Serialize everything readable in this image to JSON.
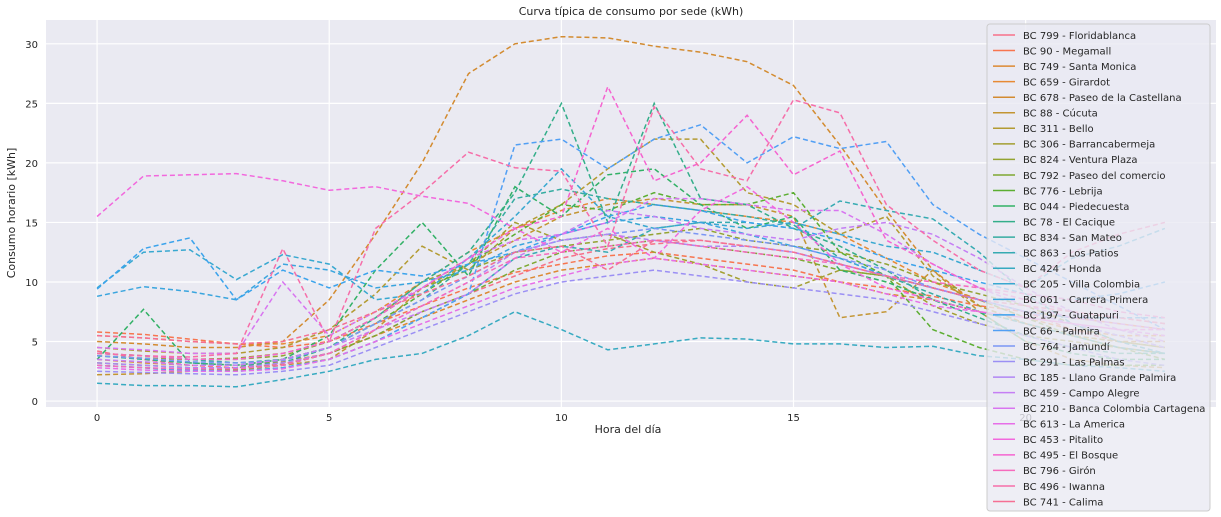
{
  "chart_data": {
    "type": "line",
    "title": "Curva típica de consumo por sede (kWh)",
    "xlabel": "Hora del día",
    "ylabel": "Consumo horario [kWh]",
    "xlim": [
      -1.1,
      24.1
    ],
    "ylim": [
      -0.5,
      32.0
    ],
    "xticks": [
      0,
      5,
      10,
      15,
      20
    ],
    "yticks": [
      0,
      5,
      10,
      15,
      20,
      25,
      30
    ],
    "grid": true,
    "legend_position": "top-right",
    "line_style": "dashed",
    "x": [
      0,
      1,
      2,
      3,
      4,
      5,
      6,
      7,
      8,
      9,
      10,
      11,
      12,
      13,
      14,
      15,
      16,
      17,
      18,
      19,
      20,
      21,
      22,
      23
    ],
    "series": [
      {
        "name": "BC 799 - Floridablanca",
        "color": "#f77189",
        "values": [
          4.2,
          3.5,
          3.0,
          2.8,
          3.1,
          4.0,
          5.5,
          7.5,
          9.0,
          10.5,
          12.0,
          12.8,
          13.2,
          13.5,
          13.0,
          12.5,
          11.5,
          10.5,
          9.5,
          8.5,
          7.5,
          6.0,
          5.0,
          4.5
        ]
      },
      {
        "name": "BC 90 - Megamall",
        "color": "#f7754f",
        "values": [
          5.8,
          5.6,
          5.2,
          4.8,
          4.5,
          5.0,
          6.5,
          8.0,
          9.5,
          10.8,
          11.5,
          12.2,
          12.5,
          12.0,
          11.5,
          11.0,
          10.0,
          9.5,
          8.8,
          8.0,
          7.5,
          7.0,
          6.5,
          6.0
        ]
      },
      {
        "name": "BC 749 - Santa Monica",
        "color": "#dc8932",
        "values": [
          3.5,
          3.2,
          3.0,
          3.0,
          3.3,
          4.0,
          5.5,
          7.0,
          8.5,
          10.0,
          11.0,
          11.5,
          12.0,
          11.5,
          11.0,
          10.5,
          10.0,
          9.0,
          8.5,
          7.5,
          6.5,
          5.5,
          4.5,
          4.0
        ]
      },
      {
        "name": "BC 659 - Girardot",
        "color": "#e78a34",
        "values": [
          5.5,
          5.3,
          5.0,
          4.8,
          4.8,
          5.5,
          7.5,
          10.0,
          12.5,
          14.5,
          16.0,
          17.0,
          16.5,
          16.0,
          15.5,
          15.0,
          14.0,
          12.0,
          10.0,
          8.5,
          7.0,
          6.0,
          5.5,
          5.5
        ]
      },
      {
        "name": "BC 678 - Paseo de la Castellana",
        "color": "#d38b30",
        "values": [
          5.0,
          4.8,
          4.5,
          4.5,
          5.0,
          8.5,
          14.0,
          20.0,
          27.5,
          30.0,
          30.6,
          30.5,
          29.8,
          29.3,
          28.5,
          26.5,
          21.5,
          16.0,
          11.0,
          8.0,
          6.5,
          5.5,
          5.0,
          5.0
        ]
      },
      {
        "name": "BC 88 - Cúcuta",
        "color": "#c39532",
        "values": [
          2.2,
          2.3,
          2.5,
          2.8,
          3.0,
          3.5,
          6.0,
          9.5,
          11.5,
          13.5,
          15.5,
          16.5,
          17.0,
          16.5,
          16.5,
          15.5,
          7.0,
          7.5,
          11.0,
          7.5,
          5.0,
          3.5,
          3.0,
          2.8
        ]
      },
      {
        "name": "BC 311 - Bello",
        "color": "#b39b32",
        "values": [
          4.5,
          4.2,
          4.0,
          4.0,
          4.5,
          6.0,
          9.0,
          13.0,
          11.0,
          14.5,
          16.5,
          19.5,
          22.0,
          22.0,
          17.5,
          16.5,
          14.0,
          15.5,
          10.5,
          8.0,
          6.5,
          5.5,
          5.0,
          4.5
        ]
      },
      {
        "name": "BC 306 - Barrancabermeja",
        "color": "#a39f31",
        "values": [
          3.8,
          3.6,
          3.5,
          3.6,
          4.0,
          5.0,
          7.0,
          10.0,
          11.5,
          15.0,
          13.5,
          14.0,
          12.5,
          11.5,
          10.0,
          9.5,
          11.0,
          10.5,
          8.0,
          6.5,
          5.5,
          5.0,
          4.5,
          4.0
        ]
      },
      {
        "name": "BC 824 - Ventura Plaza",
        "color": "#93a331",
        "values": [
          4.0,
          3.8,
          3.5,
          3.5,
          3.8,
          5.0,
          7.0,
          9.5,
          11.0,
          12.5,
          13.0,
          13.5,
          14.0,
          14.5,
          13.5,
          13.0,
          12.5,
          11.5,
          10.0,
          9.0,
          8.0,
          6.5,
          5.0,
          4.5
        ]
      },
      {
        "name": "BC 792 - Paseo del comercio",
        "color": "#7ea832",
        "values": [
          3.0,
          2.8,
          2.6,
          2.6,
          3.0,
          4.0,
          5.5,
          7.5,
          9.0,
          11.0,
          12.5,
          13.0,
          13.5,
          13.0,
          12.5,
          12.0,
          11.0,
          10.5,
          9.5,
          8.5,
          7.0,
          5.5,
          4.5,
          3.5
        ]
      },
      {
        "name": "BC 776 - Lebrija",
        "color": "#5cae32",
        "values": [
          3.2,
          3.0,
          2.8,
          2.8,
          3.5,
          4.5,
          6.5,
          9.0,
          11.5,
          14.0,
          16.5,
          16.0,
          17.5,
          16.5,
          16.5,
          17.5,
          12.5,
          10.5,
          6.0,
          4.5,
          3.5,
          3.0,
          3.0,
          3.0
        ]
      },
      {
        "name": "BC 044 - Piedecuesta",
        "color": "#32b166",
        "values": [
          3.5,
          7.7,
          3.2,
          3.0,
          3.5,
          5.5,
          11.0,
          15.0,
          10.5,
          18.0,
          15.5,
          19.0,
          19.5,
          16.5,
          14.5,
          15.5,
          11.0,
          10.0,
          8.5,
          7.5,
          5.0,
          4.0,
          3.5,
          3.5
        ]
      },
      {
        "name": "BC 78 - El Cacique",
        "color": "#34ae8a",
        "values": [
          3.8,
          3.5,
          3.2,
          3.0,
          3.2,
          4.5,
          7.0,
          10.0,
          12.5,
          17.5,
          25.0,
          15.0,
          25.0,
          17.0,
          16.5,
          14.5,
          13.0,
          11.0,
          8.5,
          7.0,
          5.5,
          4.5,
          4.0,
          4.0
        ]
      },
      {
        "name": "BC 834 - San Mateo",
        "color": "#35aca1",
        "values": [
          4.0,
          3.8,
          3.5,
          3.2,
          3.5,
          4.5,
          6.5,
          8.5,
          11.5,
          17.0,
          17.8,
          17.0,
          16.5,
          16.0,
          15.5,
          14.8,
          12.0,
          10.5,
          9.0,
          7.5,
          6.5,
          5.5,
          4.5,
          4.0
        ]
      },
      {
        "name": "BC 863 - Los Patios",
        "color": "#36abb2",
        "values": [
          3.0,
          2.8,
          2.5,
          2.5,
          2.8,
          3.5,
          5.0,
          7.0,
          9.0,
          12.0,
          13.0,
          12.5,
          14.5,
          15.0,
          15.0,
          14.5,
          16.8,
          16.0,
          15.3,
          12.5,
          9.0,
          6.5,
          5.0,
          4.0
        ]
      },
      {
        "name": "BC 424 - Honda",
        "color": "#37aac1",
        "values": [
          1.5,
          1.3,
          1.3,
          1.2,
          1.8,
          2.5,
          3.5,
          4.0,
          5.5,
          7.5,
          6.0,
          4.3,
          4.8,
          5.3,
          5.2,
          4.8,
          4.8,
          4.5,
          4.6,
          3.8,
          3.5,
          3.0,
          2.8,
          2.5
        ]
      },
      {
        "name": "BC 205 - Villa Colombia",
        "color": "#38a8d0",
        "values": [
          9.5,
          12.5,
          12.7,
          10.2,
          12.3,
          11.5,
          8.5,
          9.0,
          12.0,
          15.5,
          19.5,
          15.5,
          14.5,
          15.0,
          14.5,
          15.0,
          14.0,
          13.0,
          12.5,
          11.0,
          9.5,
          12.0,
          13.0,
          14.5
        ]
      },
      {
        "name": "BC 061 - Carrera Primera",
        "color": "#3aa5de",
        "values": [
          8.8,
          9.6,
          9.2,
          8.5,
          11.5,
          11.0,
          9.5,
          10.0,
          11.0,
          13.0,
          14.0,
          15.0,
          15.5,
          15.0,
          14.0,
          13.0,
          12.0,
          10.5,
          9.5,
          8.5,
          7.5,
          7.0,
          7.0,
          7.0
        ]
      },
      {
        "name": "BC 197 - Guatapuri",
        "color": "#3ba3ec",
        "values": [
          9.4,
          12.8,
          13.7,
          8.5,
          11.0,
          9.5,
          11.0,
          10.5,
          11.5,
          12.5,
          14.0,
          15.5,
          16.5,
          16.0,
          15.0,
          14.5,
          13.5,
          12.0,
          11.0,
          10.0,
          9.0,
          8.5,
          9.0,
          10.0
        ]
      },
      {
        "name": "BC 66 - Palmira",
        "color": "#519ff4",
        "values": [
          3.0,
          2.8,
          2.6,
          2.5,
          2.8,
          3.5,
          5.0,
          7.0,
          9.0,
          21.5,
          22.0,
          19.5,
          22.0,
          23.2,
          20.0,
          22.2,
          21.2,
          21.8,
          16.5,
          14.0,
          12.0,
          10.0,
          8.0,
          6.0
        ]
      },
      {
        "name": "BC 764 - Jamundí",
        "color": "#7b96f4",
        "values": [
          3.8,
          3.6,
          3.3,
          3.2,
          3.4,
          4.5,
          6.5,
          8.5,
          10.5,
          12.5,
          13.5,
          14.0,
          14.5,
          14.0,
          13.5,
          13.0,
          12.0,
          11.0,
          9.5,
          8.5,
          7.5,
          6.5,
          5.5,
          4.5
        ]
      },
      {
        "name": "BC 291 - Las Palmas",
        "color": "#9b8ff4",
        "values": [
          2.5,
          2.4,
          2.3,
          2.2,
          2.5,
          3.0,
          4.5,
          6.0,
          7.5,
          9.0,
          10.0,
          10.5,
          11.0,
          10.5,
          10.0,
          9.5,
          9.0,
          8.5,
          7.5,
          6.5,
          5.5,
          4.5,
          3.5,
          3.0
        ]
      },
      {
        "name": "BC 185 - Llano Grande Palmira",
        "color": "#b186f4",
        "values": [
          3.2,
          3.0,
          2.8,
          2.8,
          3.2,
          4.0,
          6.0,
          8.0,
          10.0,
          12.5,
          13.5,
          14.0,
          13.5,
          13.0,
          13.0,
          12.5,
          11.5,
          10.5,
          9.5,
          8.5,
          7.5,
          6.5,
          5.5,
          4.5
        ]
      },
      {
        "name": "BC 459 - Campo Alegre",
        "color": "#c57ef4",
        "values": [
          3.5,
          3.3,
          3.0,
          3.0,
          3.5,
          4.5,
          6.0,
          7.5,
          9.0,
          12.0,
          14.0,
          16.0,
          15.5,
          14.5,
          14.0,
          13.5,
          14.5,
          15.0,
          14.0,
          12.0,
          9.5,
          7.5,
          6.0,
          5.0
        ]
      },
      {
        "name": "BC 210 - Banca Colombia Cartagena",
        "color": "#d875f0",
        "values": [
          4.5,
          4.3,
          4.0,
          4.0,
          10.0,
          5.5,
          7.5,
          9.5,
          12.0,
          13.5,
          14.0,
          15.0,
          17.0,
          17.0,
          16.5,
          16.0,
          16.0,
          14.0,
          11.5,
          9.5,
          8.0,
          7.0,
          6.5,
          6.0
        ]
      },
      {
        "name": "BC 613 - La America",
        "color": "#e76ee8",
        "values": [
          2.8,
          2.6,
          2.5,
          2.5,
          2.7,
          3.5,
          5.0,
          6.5,
          8.0,
          9.5,
          10.5,
          11.5,
          12.0,
          11.5,
          11.0,
          10.5,
          10.0,
          9.0,
          8.0,
          7.5,
          7.0,
          6.5,
          6.0,
          5.5
        ]
      },
      {
        "name": "BC 453 - Pitalito",
        "color": "#f268dd",
        "values": [
          15.5,
          18.9,
          19.0,
          19.1,
          18.5,
          17.7,
          18.0,
          17.2,
          16.6,
          14.5,
          12.5,
          14.5,
          12.0,
          16.0,
          18.0,
          15.0,
          11.5,
          9.5,
          8.5,
          7.5,
          7.0,
          6.5,
          6.0,
          6.0
        ]
      },
      {
        "name": "BC 495 - El Bosque",
        "color": "#f564d0",
        "values": [
          4.0,
          3.8,
          3.5,
          3.5,
          4.0,
          5.0,
          7.0,
          9.5,
          12.0,
          14.5,
          15.5,
          26.4,
          18.5,
          20.0,
          24.0,
          19.0,
          21.0,
          13.5,
          11.5,
          9.5,
          8.5,
          7.5,
          7.0,
          6.5
        ]
      },
      {
        "name": "BC 796 - Girón",
        "color": "#f66bbd",
        "values": [
          3.0,
          2.8,
          2.7,
          2.7,
          3.0,
          4.0,
          6.0,
          8.0,
          10.0,
          12.0,
          12.5,
          13.0,
          13.5,
          13.0,
          12.5,
          12.0,
          11.5,
          10.5,
          10.0,
          9.5,
          9.0,
          8.5,
          7.5,
          7.0
        ]
      },
      {
        "name": "BC 496 - Iwanna",
        "color": "#f66ea9",
        "values": [
          4.0,
          3.8,
          3.7,
          4.0,
          12.8,
          5.0,
          14.5,
          17.5,
          20.9,
          19.6,
          19.3,
          13.0,
          24.7,
          19.5,
          18.5,
          25.3,
          24.2,
          16.5,
          13.5,
          11.0,
          9.5,
          12.5,
          14.0,
          15.0
        ]
      },
      {
        "name": "BC 741 - Calima",
        "color": "#f56f94",
        "values": [
          5.5,
          5.3,
          5.0,
          4.8,
          5.0,
          6.0,
          7.5,
          9.0,
          10.5,
          12.5,
          13.0,
          11.0,
          13.5,
          13.5,
          13.0,
          12.5,
          11.5,
          10.5,
          9.5,
          8.5,
          8.0,
          7.5,
          7.0,
          6.5
        ]
      }
    ]
  }
}
